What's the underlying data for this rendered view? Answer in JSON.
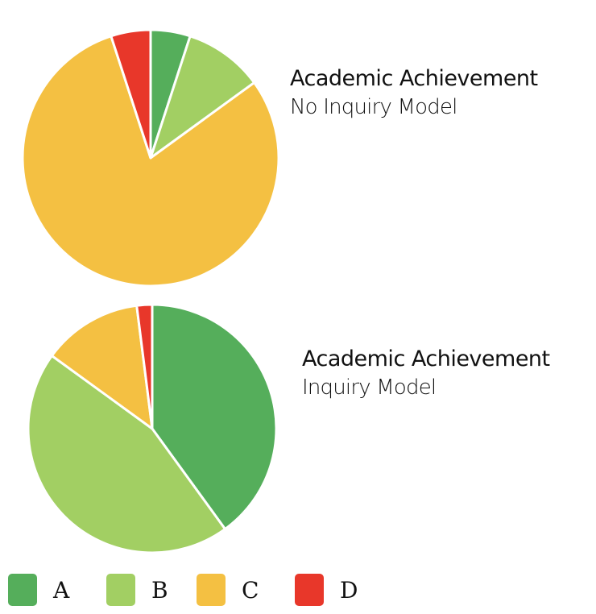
{
  "colors": {
    "A": "#55ae5b",
    "B": "#a2cf63",
    "C": "#f4c042",
    "D": "#e8372a"
  },
  "chart_data": [
    {
      "type": "pie",
      "title": "Academic Achievement",
      "subtitle": "No Inquiry Model",
      "categories": [
        "A",
        "B",
        "C",
        "D"
      ],
      "values": [
        5,
        10,
        80,
        5
      ]
    },
    {
      "type": "pie",
      "title": "Academic Achievement",
      "subtitle": "Inquiry Model",
      "categories": [
        "A",
        "B",
        "C",
        "D"
      ],
      "values": [
        40,
        45,
        13,
        2
      ]
    }
  ],
  "legend": {
    "items": [
      {
        "key": "A",
        "label": "A"
      },
      {
        "key": "B",
        "label": "B"
      },
      {
        "key": "C",
        "label": "C"
      },
      {
        "key": "D",
        "label": "D"
      }
    ]
  }
}
